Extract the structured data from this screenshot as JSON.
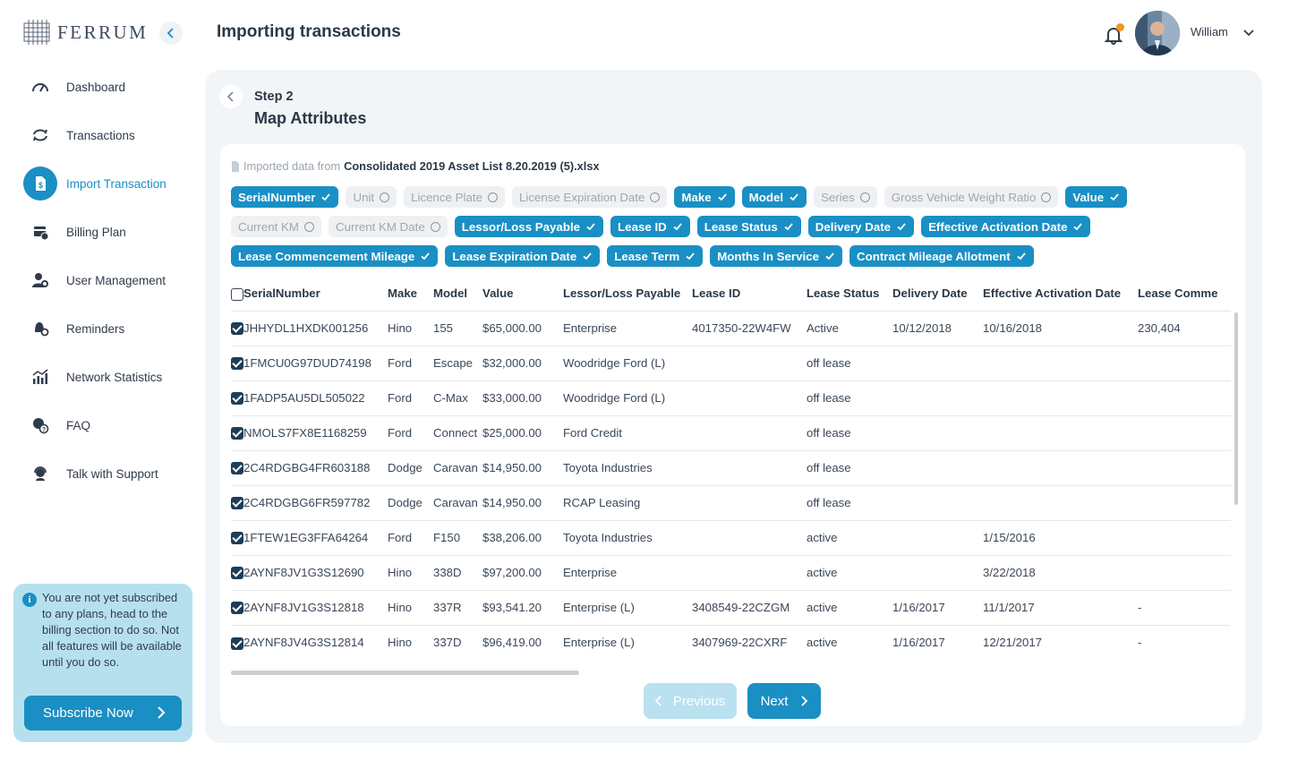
{
  "brand": {
    "name": "FERRUM"
  },
  "sidebar": {
    "items": [
      {
        "label": "Dashboard",
        "icon": "gauge-icon",
        "active": false
      },
      {
        "label": "Transactions",
        "icon": "sync-icon",
        "active": false
      },
      {
        "label": "Import Transaction",
        "icon": "document-dollar-icon",
        "active": true
      },
      {
        "label": "Billing Plan",
        "icon": "billing-icon",
        "active": false
      },
      {
        "label": "User Management",
        "icon": "user-gear-icon",
        "active": false
      },
      {
        "label": "Reminders",
        "icon": "reminder-icon",
        "active": false
      },
      {
        "label": "Network Statistics",
        "icon": "stats-icon",
        "active": false
      },
      {
        "label": "FAQ",
        "icon": "faq-icon",
        "active": false
      },
      {
        "label": "Talk with Support",
        "icon": "support-icon",
        "active": false
      }
    ],
    "promo": {
      "text": "You are not yet subscribed to any plans, head to the billing section to do so. Not all features will be available until you do so.",
      "button": "Subscribe Now"
    }
  },
  "header": {
    "title": "Importing transactions",
    "user_name": "William"
  },
  "step": {
    "label": "Step 2",
    "title": "Map Attributes"
  },
  "import_info": {
    "prefix": "Imported data from",
    "file": "Consolidated 2019 Asset List 8.20.2019 (5).xlsx"
  },
  "attributes": [
    [
      {
        "label": "SerialNumber",
        "selected": true
      },
      {
        "label": "Unit",
        "selected": false
      },
      {
        "label": "Licence Plate",
        "selected": false
      },
      {
        "label": "License Expiration Date",
        "selected": false
      },
      {
        "label": "Make",
        "selected": true
      },
      {
        "label": "Model",
        "selected": true
      },
      {
        "label": "Series",
        "selected": false
      },
      {
        "label": "Gross Vehicle Weight Ratio",
        "selected": false
      },
      {
        "label": "Value",
        "selected": true
      }
    ],
    [
      {
        "label": "Current KM",
        "selected": false
      },
      {
        "label": "Current KM Date",
        "selected": false
      },
      {
        "label": "Lessor/Loss Payable",
        "selected": true
      },
      {
        "label": "Lease ID",
        "selected": true
      },
      {
        "label": "Lease Status",
        "selected": true
      },
      {
        "label": "Delivery Date",
        "selected": true
      },
      {
        "label": "Effective Activation Date",
        "selected": true
      }
    ],
    [
      {
        "label": "Lease Commencement Mileage",
        "selected": true
      },
      {
        "label": "Lease Expiration Date",
        "selected": true
      },
      {
        "label": "Lease Term",
        "selected": true
      },
      {
        "label": "Months In Service",
        "selected": true
      },
      {
        "label": "Contract Mileage Allotment",
        "selected": true
      }
    ]
  ],
  "table": {
    "columns": [
      "SerialNumber",
      "Make",
      "Model",
      "Value",
      "Lessor/Loss Payable",
      "Lease ID",
      "Lease Status",
      "Delivery Date",
      "Effective Activation Date",
      "Lease Comme"
    ],
    "rows": [
      [
        "JHHYDL1HXDK001256",
        "Hino",
        "155",
        "$65,000.00",
        "Enterprise",
        "4017350-22W4FW",
        "Active",
        "10/12/2018",
        "10/16/2018",
        "230,404"
      ],
      [
        "1FMCU0G97DUD74198",
        "Ford",
        "Escape",
        "$32,000.00",
        "Woodridge Ford (L)",
        "",
        "off lease",
        "",
        "",
        ""
      ],
      [
        "1FADP5AU5DL505022",
        "Ford",
        "C-Max",
        "$33,000.00",
        "Woodridge Ford (L)",
        "",
        "off lease",
        "",
        "",
        ""
      ],
      [
        "NMOLS7FX8E1168259",
        "Ford",
        "Connect",
        "$25,000.00",
        "Ford Credit",
        "",
        "off lease",
        "",
        "",
        ""
      ],
      [
        "2C4RDGBG4FR603188",
        "Dodge",
        "Caravan",
        "$14,950.00",
        "Toyota Industries",
        "",
        "off lease",
        "",
        "",
        ""
      ],
      [
        "2C4RDGBG6FR597782",
        "Dodge",
        "Caravan",
        "$14,950.00",
        "RCAP Leasing",
        "",
        "off lease",
        "",
        "",
        ""
      ],
      [
        "1FTEW1EG3FFA64264",
        "Ford",
        "F150",
        "$38,206.00",
        "Toyota Industries",
        "",
        "active",
        "",
        "1/15/2016",
        ""
      ],
      [
        "2AYNF8JV1G3S12690",
        "Hino",
        "338D",
        "$97,200.00",
        "Enterprise",
        "",
        "active",
        "",
        "3/22/2018",
        ""
      ],
      [
        "2AYNF8JV1G3S12818",
        "Hino",
        "337R",
        "$93,541.20",
        "Enterprise (L)",
        "3408549-22CZGM",
        "active",
        "1/16/2017",
        "11/1/2017",
        "-"
      ],
      [
        "2AYNF8JV4G3S12814",
        "Hino",
        "337D",
        "$96,419.00",
        "Enterprise (L)",
        "3407969-22CXRF",
        "active",
        "1/16/2017",
        "12/21/2017",
        "-"
      ]
    ]
  },
  "footer": {
    "previous": "Previous",
    "next": "Next"
  },
  "colors": {
    "accent": "#1a8fc4",
    "accent_light": "#b9e1ef",
    "notification": "#f2941f"
  }
}
